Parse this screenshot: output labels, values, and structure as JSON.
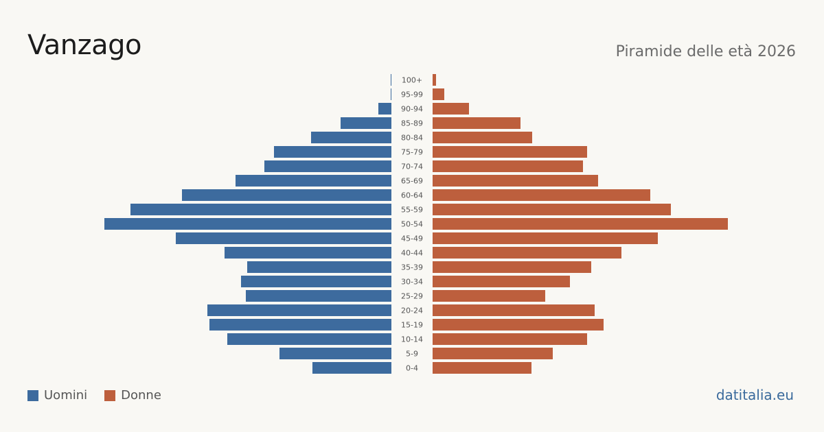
{
  "header": {
    "title": "Vanzago",
    "subtitle": "Piramide delle età 2026"
  },
  "legend": {
    "men_label": "Uomini",
    "women_label": "Donne"
  },
  "footer": {
    "source": "datitalia.eu"
  },
  "colors": {
    "men": "#3d6b9e",
    "women": "#bd5f3d",
    "background": "#f9f8f4"
  },
  "chart_data": {
    "type": "bar",
    "orientation": "horizontal-pyramid",
    "categories": [
      "100+",
      "95-99",
      "90-94",
      "85-89",
      "80-84",
      "75-79",
      "70-74",
      "65-69",
      "60-64",
      "55-59",
      "50-54",
      "45-49",
      "40-44",
      "35-39",
      "30-34",
      "25-29",
      "20-24",
      "15-19",
      "10-14",
      "5-9",
      "0-4"
    ],
    "series": [
      {
        "name": "Uomini",
        "values": [
          1,
          1,
          19,
          74,
          117,
          171,
          185,
          227,
          305,
          380,
          418,
          314,
          243,
          210,
          219,
          212,
          268,
          265,
          239,
          163,
          115
        ]
      },
      {
        "name": "Donne",
        "values": [
          5,
          17,
          53,
          128,
          145,
          225,
          219,
          241,
          317,
          347,
          430,
          328,
          275,
          231,
          200,
          164,
          236,
          249,
          225,
          175,
          144
        ]
      }
    ],
    "xlabel": "",
    "ylabel": "",
    "legend_position": "bottom-left",
    "grid": false
  }
}
